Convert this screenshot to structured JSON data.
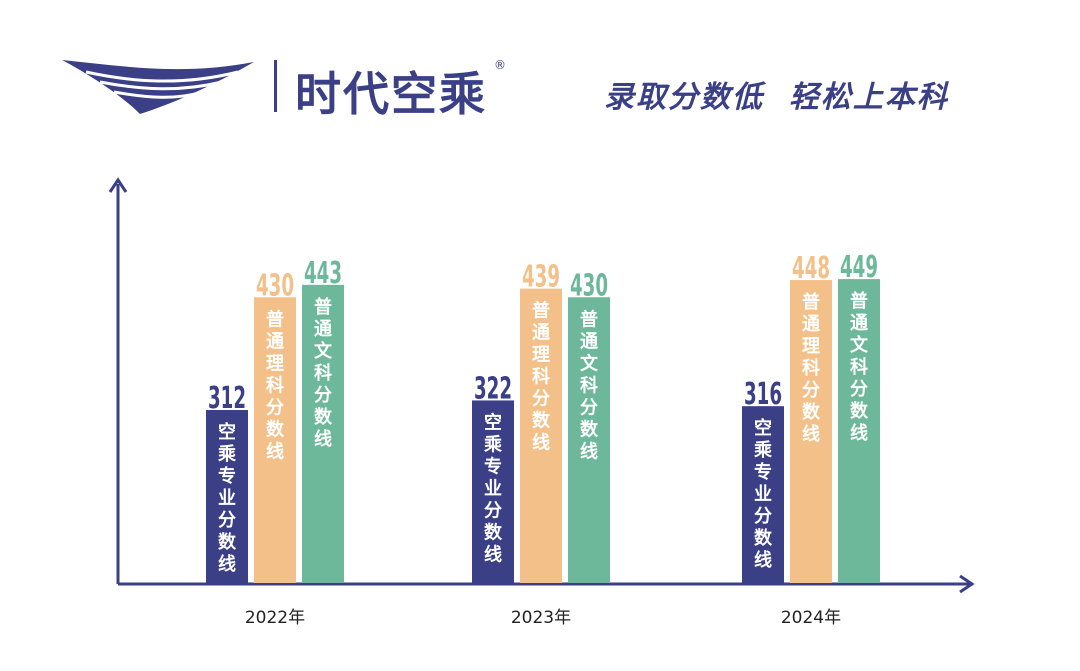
{
  "header": {
    "brand_name": "时代空乘",
    "brand_reg": "®",
    "slogan": "录取分数低  轻松上本科"
  },
  "colors": {
    "brand": "#3a3f86",
    "series_1": "#3a3f86",
    "series_2": "#f3c08a",
    "series_3": "#6db89a"
  },
  "chart_data": {
    "type": "bar",
    "categories": [
      "2022年",
      "2023年",
      "2024年"
    ],
    "series": [
      {
        "name": "空乘专业分数线",
        "values": [
          312,
          322,
          316
        ]
      },
      {
        "name": "普通理科分数线",
        "values": [
          430,
          439,
          448
        ]
      },
      {
        "name": "普通文科分数线",
        "values": [
          443,
          430,
          449
        ]
      }
    ],
    "title": "",
    "xlabel": "",
    "ylabel": "",
    "grid": false,
    "legend": "none (labels written inside bars)"
  }
}
